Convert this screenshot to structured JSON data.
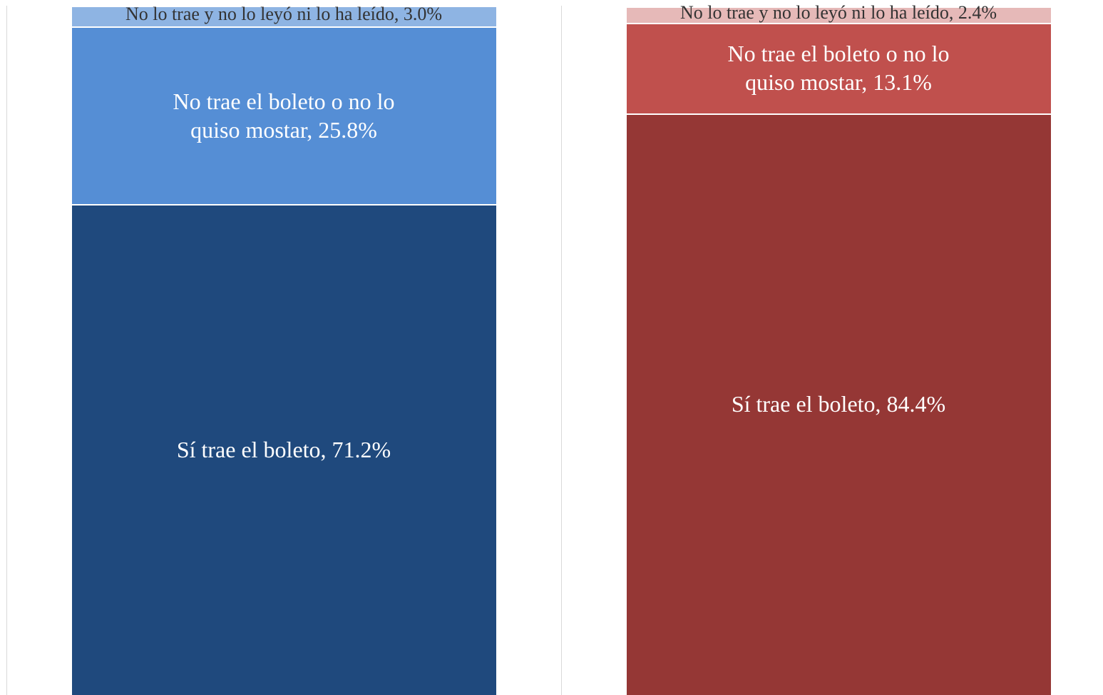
{
  "chart_data": {
    "type": "bar",
    "stacked": true,
    "categories": [
      null,
      null
    ],
    "ylim": [
      0,
      100
    ],
    "grid": true,
    "series": [
      {
        "colors": [
          "#1f497d",
          "#953735"
        ],
        "values": [
          71.2,
          84.4
        ],
        "value_labels": [
          "Sí trae el boleto, 71.2%",
          "Sí trae el boleto, 84.4%"
        ]
      },
      {
        "colors": [
          "#558ed5",
          "#c0504d"
        ],
        "values": [
          25.8,
          13.1
        ],
        "value_labels": [
          "No trae el boleto o no lo quiso mostar, 25.8%",
          "No trae el boleto o no lo quiso mostar, 13.1%"
        ]
      },
      {
        "colors": [
          "#8eb4e3",
          "#e6b9b8"
        ],
        "values": [
          3.0,
          2.4
        ],
        "value_labels": [
          "No lo trae y no lo leyó ni lo ha leído, 3.0%",
          "No lo trae y no lo leyó ni lo ha leído, 2.4%"
        ]
      }
    ]
  }
}
